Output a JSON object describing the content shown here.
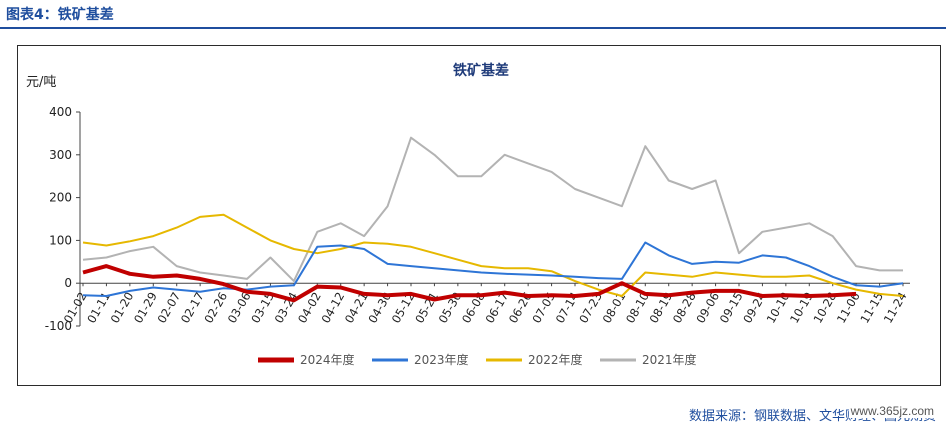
{
  "figure_label": "图表4：铁矿基差",
  "source_text": "数据来源：钢联数据、文华财经、国元期货",
  "watermark_text": "www.365jz.com",
  "chart_data": {
    "type": "line",
    "title": "铁矿基差",
    "ylabel": "元/吨",
    "ylim": [
      -100,
      400
    ],
    "yticks": [
      -100,
      0,
      100,
      200,
      300,
      400
    ],
    "grid": false,
    "legend_position": "bottom",
    "categories": [
      "01-02",
      "01-11",
      "01-20",
      "01-29",
      "02-07",
      "02-17",
      "02-26",
      "03-06",
      "03-15",
      "03-24",
      "04-02",
      "04-12",
      "04-21",
      "04-30",
      "05-12",
      "05-21",
      "05-30",
      "06-08",
      "06-17",
      "06-26",
      "07-05",
      "07-14",
      "07-23",
      "08-01",
      "08-10",
      "08-19",
      "08-28",
      "09-06",
      "09-15",
      "09-24",
      "10-10",
      "10-19",
      "10-28",
      "11-06",
      "11-15",
      "11-24"
    ],
    "series": [
      {
        "name": "2024年度",
        "color": "#c00000",
        "width": 4,
        "values": [
          25,
          40,
          22,
          15,
          18,
          10,
          -2,
          -20,
          -25,
          -40,
          -8,
          -10,
          -25,
          -28,
          -25,
          -38,
          -28,
          -28,
          -22,
          -30,
          -28,
          -30,
          -25,
          0,
          -25,
          -28,
          -22,
          -18,
          -18,
          -30,
          -28,
          -30,
          -28,
          -25,
          null,
          null
        ]
      },
      {
        "name": "2023年度",
        "color": "#2e75d6",
        "width": 2,
        "values": [
          -28,
          -30,
          -18,
          -10,
          -15,
          -20,
          -12,
          -15,
          -8,
          -5,
          85,
          88,
          80,
          45,
          40,
          35,
          30,
          25,
          22,
          20,
          18,
          15,
          12,
          10,
          95,
          65,
          45,
          50,
          48,
          65,
          60,
          40,
          15,
          -5,
          -8,
          0
        ]
      },
      {
        "name": "2022年度",
        "color": "#e6b800",
        "width": 2,
        "values": [
          95,
          88,
          98,
          110,
          130,
          155,
          160,
          130,
          100,
          80,
          70,
          80,
          95,
          92,
          85,
          70,
          55,
          40,
          35,
          35,
          28,
          5,
          -15,
          -30,
          25,
          20,
          15,
          25,
          20,
          15,
          15,
          18,
          0,
          -15,
          -25,
          -30
        ]
      },
      {
        "name": "2021年度",
        "color": "#b3b3b3",
        "width": 2,
        "values": [
          55,
          60,
          75,
          85,
          40,
          25,
          18,
          10,
          60,
          5,
          120,
          140,
          110,
          180,
          340,
          300,
          250,
          250,
          300,
          280,
          260,
          220,
          200,
          180,
          320,
          240,
          220,
          240,
          70,
          120,
          130,
          140,
          110,
          40,
          30,
          30
        ]
      }
    ]
  }
}
